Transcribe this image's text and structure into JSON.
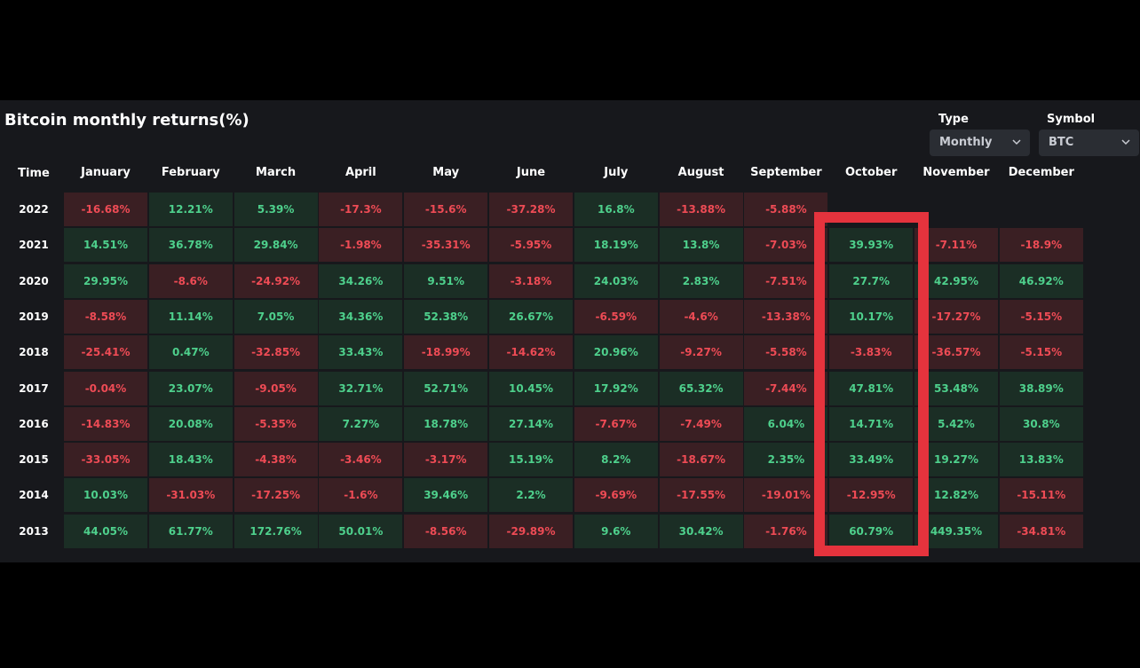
{
  "header": {
    "title": "Bitcoin monthly returns(%)",
    "type_label": "Type",
    "type_value": "Monthly",
    "symbol_label": "Symbol",
    "symbol_value": "BTC"
  },
  "colors": {
    "positive_text": "#4ed08c",
    "negative_text": "#ee4b55",
    "positive_cell": "#1b2e25",
    "negative_cell": "#3a1f23",
    "highlight": "#e5333d",
    "background": "#17181c"
  },
  "chart_data": {
    "type": "heatmap",
    "title": "Bitcoin monthly returns(%)",
    "row_header": "Time",
    "columns": [
      "January",
      "February",
      "March",
      "April",
      "May",
      "June",
      "July",
      "August",
      "September",
      "October",
      "November",
      "December"
    ],
    "rows": [
      {
        "year": "2022",
        "values": [
          "-16.68%",
          "12.21%",
          "5.39%",
          "-17.3%",
          "-15.6%",
          "-37.28%",
          "16.8%",
          "-13.88%",
          "-5.88%",
          null,
          null,
          null
        ]
      },
      {
        "year": "2021",
        "values": [
          "14.51%",
          "36.78%",
          "29.84%",
          "-1.98%",
          "-35.31%",
          "-5.95%",
          "18.19%",
          "13.8%",
          "-7.03%",
          "39.93%",
          "-7.11%",
          "-18.9%"
        ]
      },
      {
        "year": "2020",
        "values": [
          "29.95%",
          "-8.6%",
          "-24.92%",
          "34.26%",
          "9.51%",
          "-3.18%",
          "24.03%",
          "2.83%",
          "-7.51%",
          "27.7%",
          "42.95%",
          "46.92%"
        ]
      },
      {
        "year": "2019",
        "values": [
          "-8.58%",
          "11.14%",
          "7.05%",
          "34.36%",
          "52.38%",
          "26.67%",
          "-6.59%",
          "-4.6%",
          "-13.38%",
          "10.17%",
          "-17.27%",
          "-5.15%"
        ]
      },
      {
        "year": "2018",
        "values": [
          "-25.41%",
          "0.47%",
          "-32.85%",
          "33.43%",
          "-18.99%",
          "-14.62%",
          "20.96%",
          "-9.27%",
          "-5.58%",
          "-3.83%",
          "-36.57%",
          "-5.15%"
        ]
      },
      {
        "year": "2017",
        "values": [
          "-0.04%",
          "23.07%",
          "-9.05%",
          "32.71%",
          "52.71%",
          "10.45%",
          "17.92%",
          "65.32%",
          "-7.44%",
          "47.81%",
          "53.48%",
          "38.89%"
        ]
      },
      {
        "year": "2016",
        "values": [
          "-14.83%",
          "20.08%",
          "-5.35%",
          "7.27%",
          "18.78%",
          "27.14%",
          "-7.67%",
          "-7.49%",
          "6.04%",
          "14.71%",
          "5.42%",
          "30.8%"
        ]
      },
      {
        "year": "2015",
        "values": [
          "-33.05%",
          "18.43%",
          "-4.38%",
          "-3.46%",
          "-3.17%",
          "15.19%",
          "8.2%",
          "-18.67%",
          "2.35%",
          "33.49%",
          "19.27%",
          "13.83%"
        ]
      },
      {
        "year": "2014",
        "values": [
          "10.03%",
          "-31.03%",
          "-17.25%",
          "-1.6%",
          "39.46%",
          "2.2%",
          "-9.69%",
          "-17.55%",
          "-19.01%",
          "-12.95%",
          "12.82%",
          "-15.11%"
        ]
      },
      {
        "year": "2013",
        "values": [
          "44.05%",
          "61.77%",
          "172.76%",
          "50.01%",
          "-8.56%",
          "-29.89%",
          "9.6%",
          "30.42%",
          "-1.76%",
          "60.79%",
          "449.35%",
          "-34.81%"
        ]
      }
    ],
    "highlighted_column": "October"
  }
}
